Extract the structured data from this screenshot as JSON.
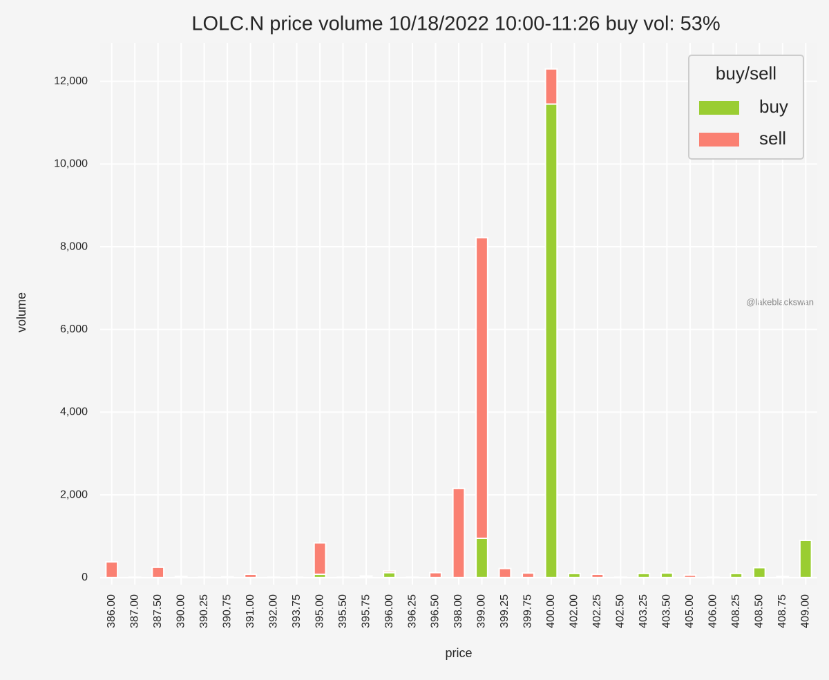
{
  "chart_data": {
    "type": "stacked_bar",
    "title": "LOLC.N price volume 10/18/2022 10:00-11:26 buy vol: 53%",
    "x_label": "price",
    "y_label": "volume",
    "categories": [
      "386.00",
      "387.00",
      "387.50",
      "390.00",
      "390.25",
      "390.75",
      "391.00",
      "392.00",
      "393.75",
      "395.00",
      "395.50",
      "395.75",
      "396.00",
      "396.25",
      "396.50",
      "398.00",
      "399.00",
      "399.25",
      "399.75",
      "400.00",
      "402.00",
      "402.25",
      "402.50",
      "403.25",
      "403.50",
      "405.00",
      "406.00",
      "408.25",
      "408.50",
      "408.75",
      "409.00"
    ],
    "series": [
      {
        "name": "buy",
        "color": "#9acd32",
        "values": [
          0,
          0,
          0,
          0,
          0,
          0,
          0,
          0,
          0,
          80,
          0,
          20,
          120,
          0,
          0,
          0,
          950,
          0,
          0,
          11450,
          100,
          0,
          0,
          100,
          110,
          0,
          0,
          100,
          240,
          0,
          900
        ]
      },
      {
        "name": "sell",
        "color": "#fa8072",
        "values": [
          380,
          10,
          250,
          30,
          10,
          20,
          80,
          10,
          10,
          760,
          10,
          20,
          40,
          10,
          120,
          2155,
          7270,
          220,
          110,
          850,
          0,
          80,
          10,
          0,
          0,
          60,
          10,
          0,
          0,
          30,
          0
        ]
      }
    ],
    "ylim": [
      -170,
      12930
    ],
    "yticks": [
      0,
      {
        "value": 2000,
        "label": "2,000"
      },
      {
        "value": 4000,
        "label": "4,000"
      },
      {
        "value": 6000,
        "label": "6,000"
      },
      {
        "value": 8000,
        "label": "8,000"
      },
      {
        "value": 10000,
        "label": "10,000"
      },
      {
        "value": 12000,
        "label": "12,000"
      }
    ],
    "grid": true,
    "legend": {
      "title": "buy/sell",
      "position": "upper right"
    },
    "watermark": "@lakeblackswan"
  }
}
